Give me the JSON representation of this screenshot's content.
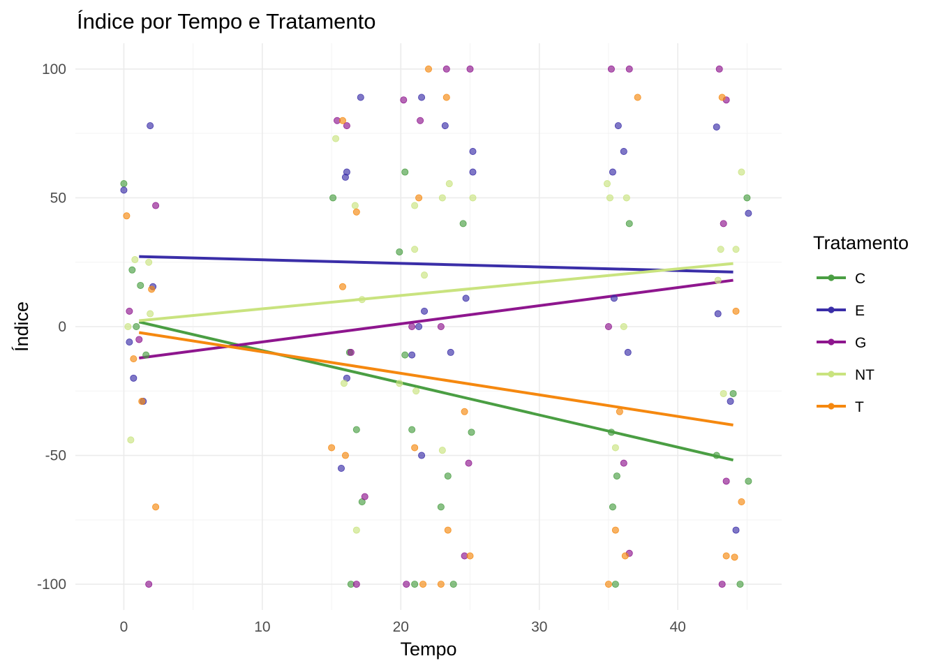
{
  "chart_data": {
    "type": "scatter",
    "title": "Índice por Tempo e Tratamento",
    "xlabel": "Tempo",
    "ylabel": "Índice",
    "xlim": [
      -3.5,
      47.5
    ],
    "ylim": [
      -110,
      110
    ],
    "x_ticks": [
      0,
      10,
      20,
      30,
      40
    ],
    "y_ticks": [
      -100,
      -50,
      0,
      50,
      100
    ],
    "x_tick_labels": [
      "0",
      "10",
      "20",
      "30",
      "40"
    ],
    "y_tick_labels": [
      "-100",
      "-50",
      "0",
      "50",
      "100"
    ],
    "grid": true,
    "legend": {
      "title": "Tratamento",
      "position": "right"
    },
    "series": [
      {
        "name": "C",
        "color": "#4a9e43",
        "trend": [
          [
            1.1,
            1.8
          ],
          [
            44.0,
            -51.8
          ]
        ],
        "points": [
          [
            0,
            55.5
          ],
          [
            0.6,
            22
          ],
          [
            0.9,
            0
          ],
          [
            1.2,
            16
          ],
          [
            1.6,
            -11
          ],
          [
            16.3,
            -10
          ],
          [
            16.4,
            -100
          ],
          [
            16.8,
            -40
          ],
          [
            17.2,
            -68
          ],
          [
            19.9,
            29
          ],
          [
            20.3,
            60
          ],
          [
            20.3,
            -11
          ],
          [
            20.8,
            -40
          ],
          [
            21.0,
            -100
          ],
          [
            22.9,
            -70
          ],
          [
            23.4,
            -58
          ],
          [
            23.8,
            -100
          ],
          [
            24.5,
            40
          ],
          [
            25.1,
            -41
          ],
          [
            15.1,
            50
          ],
          [
            35.2,
            -41
          ],
          [
            35.3,
            -70
          ],
          [
            35.5,
            -100
          ],
          [
            35.6,
            -58
          ],
          [
            36.5,
            40
          ],
          [
            42.8,
            -50
          ],
          [
            44.0,
            -26
          ],
          [
            44.5,
            -100
          ],
          [
            45.0,
            50
          ],
          [
            45.1,
            -60
          ]
        ]
      },
      {
        "name": "E",
        "color": "#3a2ea8",
        "trend": [
          [
            1.1,
            27.2
          ],
          [
            44.0,
            21.2
          ]
        ],
        "points": [
          [
            0,
            53
          ],
          [
            0.4,
            -6
          ],
          [
            0.7,
            -20
          ],
          [
            1.4,
            -29
          ],
          [
            1.9,
            78
          ],
          [
            2.1,
            15.5
          ],
          [
            15.7,
            -55
          ],
          [
            16.0,
            58
          ],
          [
            16.1,
            60
          ],
          [
            16.1,
            -20
          ],
          [
            17.1,
            89
          ],
          [
            20.8,
            -11
          ],
          [
            21.3,
            0
          ],
          [
            21.5,
            -50
          ],
          [
            21.5,
            89
          ],
          [
            21.7,
            6
          ],
          [
            23.2,
            78
          ],
          [
            23.6,
            -10
          ],
          [
            24.7,
            11
          ],
          [
            25.2,
            60
          ],
          [
            25.2,
            68
          ],
          [
            35.3,
            60
          ],
          [
            35.4,
            11
          ],
          [
            35.7,
            78
          ],
          [
            36.1,
            68
          ],
          [
            36.4,
            -10
          ],
          [
            42.9,
            5
          ],
          [
            42.8,
            77.5
          ],
          [
            43.8,
            -29
          ],
          [
            44.2,
            -79
          ],
          [
            45.1,
            44
          ]
        ]
      },
      {
        "name": "G",
        "color": "#8e168e",
        "trend": [
          [
            1.1,
            -12.2
          ],
          [
            44.0,
            18.0
          ]
        ],
        "points": [
          [
            0.4,
            6
          ],
          [
            1.1,
            -5
          ],
          [
            1.8,
            -100
          ],
          [
            2.3,
            47
          ],
          [
            15.4,
            80
          ],
          [
            16.1,
            78
          ],
          [
            16.4,
            -10
          ],
          [
            16.8,
            -100
          ],
          [
            17.4,
            -66
          ],
          [
            20.2,
            88
          ],
          [
            20.4,
            -100
          ],
          [
            20.8,
            0
          ],
          [
            21.4,
            80
          ],
          [
            22.9,
            0
          ],
          [
            23.3,
            100
          ],
          [
            24.6,
            -89
          ],
          [
            24.9,
            -53
          ],
          [
            25.0,
            100
          ],
          [
            35.0,
            0
          ],
          [
            35.2,
            100
          ],
          [
            36.1,
            -53
          ],
          [
            36.5,
            100
          ],
          [
            36.5,
            -88
          ],
          [
            43.0,
            100
          ],
          [
            43.2,
            -100
          ],
          [
            43.3,
            40
          ],
          [
            43.5,
            -60
          ],
          [
            43.5,
            88
          ]
        ]
      },
      {
        "name": "NT",
        "color": "#c9e37f",
        "trend": [
          [
            1.1,
            2.3
          ],
          [
            44.0,
            24.5
          ]
        ],
        "points": [
          [
            0.3,
            0
          ],
          [
            0.5,
            -44
          ],
          [
            0.8,
            26
          ],
          [
            1.8,
            25
          ],
          [
            1.9,
            5
          ],
          [
            15.3,
            73
          ],
          [
            15.9,
            -22
          ],
          [
            16.7,
            47
          ],
          [
            16.8,
            -79
          ],
          [
            17.2,
            10.5
          ],
          [
            19.9,
            -22
          ],
          [
            21.0,
            30
          ],
          [
            21.0,
            47
          ],
          [
            21.1,
            -25
          ],
          [
            21.7,
            20
          ],
          [
            23.0,
            -48
          ],
          [
            23.0,
            50
          ],
          [
            23.5,
            55.5
          ],
          [
            25.2,
            50
          ],
          [
            34.9,
            55.5
          ],
          [
            35.1,
            50
          ],
          [
            35.5,
            -47
          ],
          [
            36.1,
            0
          ],
          [
            36.3,
            50
          ],
          [
            43.1,
            30
          ],
          [
            43.3,
            -26
          ],
          [
            44.2,
            30
          ],
          [
            44.6,
            60
          ],
          [
            42.9,
            18
          ]
        ]
      },
      {
        "name": "T",
        "color": "#f5880f",
        "trend": [
          [
            1.1,
            -2.3
          ],
          [
            44.0,
            -38.2
          ]
        ],
        "points": [
          [
            0.2,
            43
          ],
          [
            0.7,
            -12.5
          ],
          [
            1.3,
            -29
          ],
          [
            2.0,
            14.5
          ],
          [
            2.3,
            -70
          ],
          [
            15.0,
            -47
          ],
          [
            15.8,
            80
          ],
          [
            15.8,
            15.5
          ],
          [
            16.0,
            -50
          ],
          [
            16.8,
            44.5
          ],
          [
            21.0,
            -47
          ],
          [
            21.3,
            50
          ],
          [
            21.6,
            -100
          ],
          [
            22.0,
            100
          ],
          [
            22.9,
            -100
          ],
          [
            23.3,
            89
          ],
          [
            23.4,
            -79
          ],
          [
            24.6,
            -33
          ],
          [
            25.0,
            -89
          ],
          [
            35.0,
            -100
          ],
          [
            35.5,
            -79
          ],
          [
            35.8,
            -33
          ],
          [
            36.2,
            -89
          ],
          [
            37.1,
            89
          ],
          [
            43.2,
            89
          ],
          [
            43.5,
            -89
          ],
          [
            44.1,
            -89.5
          ],
          [
            44.2,
            6
          ],
          [
            44.6,
            -68
          ]
        ]
      }
    ]
  }
}
